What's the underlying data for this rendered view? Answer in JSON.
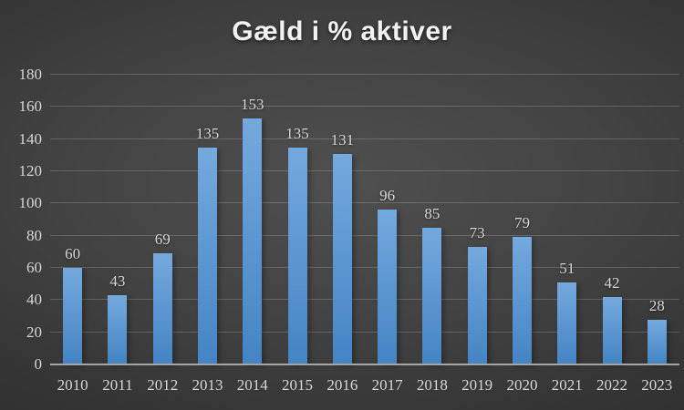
{
  "chart_data": {
    "type": "bar",
    "title": "Gæld i % aktiver",
    "categories": [
      "2010",
      "2011",
      "2012",
      "2013",
      "2014",
      "2015",
      "2016",
      "2017",
      "2018",
      "2019",
      "2020",
      "2021",
      "2022",
      "2023"
    ],
    "values": [
      60,
      43,
      69,
      135,
      153,
      135,
      131,
      96,
      85,
      73,
      79,
      51,
      42,
      28
    ],
    "data_labels": [
      60,
      43,
      69,
      135,
      153,
      135,
      131,
      96,
      85,
      73,
      79,
      51,
      42,
      28
    ],
    "xlabel": "",
    "ylabel": "",
    "ylim": [
      0,
      180
    ],
    "ytick_step": 20,
    "yticks": [
      0,
      20,
      40,
      60,
      80,
      100,
      120,
      140,
      160,
      180
    ],
    "grid": true,
    "legend_position": "none"
  },
  "colors": {
    "background_center": "#4f4f4f",
    "background_edge": "#242424",
    "title_text": "#f2f2f2",
    "tick_text": "#d6d6d6",
    "data_label_text": "#d6d6d6",
    "gridline": "rgba(255,255,255,0.18)",
    "axis_line": "#a6a6a6",
    "bar_gradient_top": "#74a9de",
    "bar_gradient_bottom": "#4484c4"
  }
}
